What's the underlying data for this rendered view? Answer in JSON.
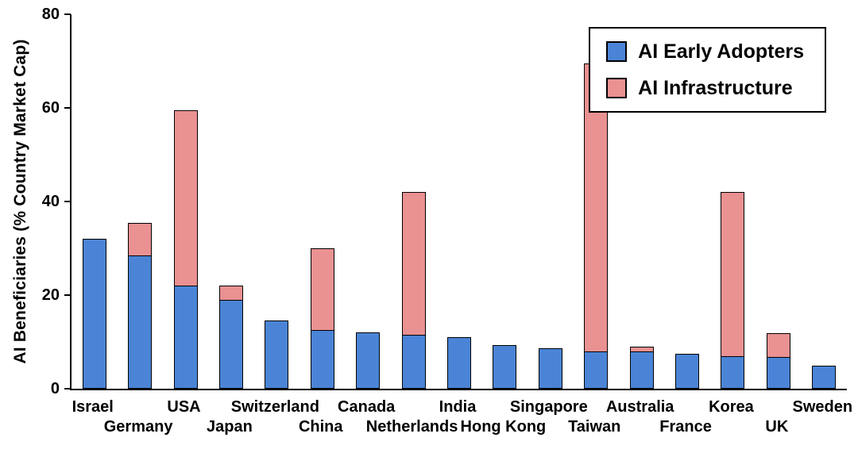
{
  "chart_data": {
    "type": "bar",
    "stacked": true,
    "title": "",
    "xlabel": "",
    "ylabel": "AI Beneficiaries (% Country Market Cap)",
    "ylim": [
      0,
      80
    ],
    "yticks": [
      0,
      20,
      40,
      60,
      80
    ],
    "grid": false,
    "legend_position": "top-right",
    "categories": [
      "Israel",
      "Germany",
      "USA",
      "Japan",
      "Switzerland",
      "China",
      "Canada",
      "Netherlands",
      "India",
      "Hong Kong",
      "Singapore",
      "Taiwan",
      "Australia",
      "France",
      "Korea",
      "UK",
      "Sweden"
    ],
    "series": [
      {
        "name": "AI Early Adopters",
        "color": "#4b84d6",
        "values": [
          32,
          28.5,
          22,
          19,
          14.5,
          12.5,
          12,
          11.5,
          11,
          9.3,
          8.7,
          8,
          8,
          7.4,
          7,
          6.8,
          5
        ]
      },
      {
        "name": "AI Infrastructure",
        "color": "#ea9192",
        "values": [
          0,
          7,
          37.5,
          3,
          0,
          17.5,
          0,
          30.5,
          0,
          0,
          0,
          61.5,
          1,
          0,
          35,
          5,
          0
        ]
      }
    ]
  }
}
